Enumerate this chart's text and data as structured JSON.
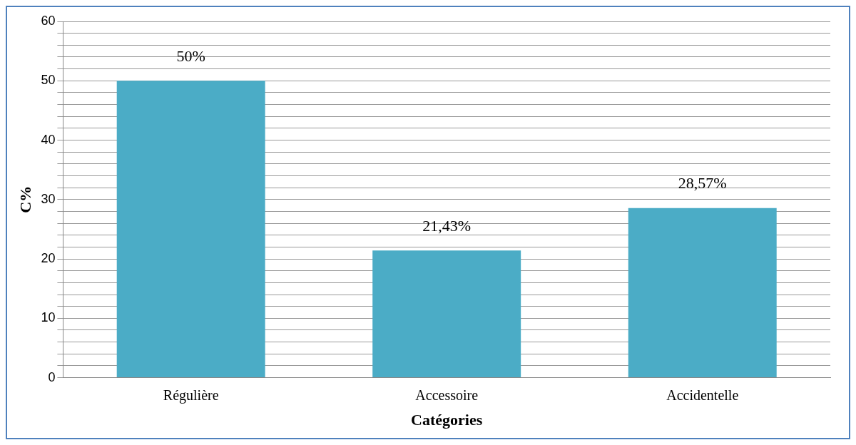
{
  "chart_data": {
    "type": "bar",
    "xlabel": "Catégories",
    "ylabel": "C%",
    "categories": [
      "Régulière",
      "Accessoire",
      "Accidentelle"
    ],
    "values": [
      50,
      21.43,
      28.57
    ],
    "value_labels": [
      "50%",
      "21,43%",
      "28,57%"
    ],
    "color": "#4bacc6",
    "ylim": [
      0,
      60
    ],
    "yticks": [
      0,
      {
        "value": 2,
        "label": null
      },
      {
        "value": 4,
        "label": null
      },
      {
        "value": 6,
        "label": null
      },
      {
        "value": 8,
        "label": null
      },
      10,
      {
        "value": 12,
        "label": null
      },
      {
        "value": 14,
        "label": null
      },
      {
        "value": 16,
        "label": null
      },
      {
        "value": 18,
        "label": null
      },
      20,
      {
        "value": 22,
        "label": null
      },
      {
        "value": 24,
        "label": null
      },
      {
        "value": 26,
        "label": null
      },
      {
        "value": 28,
        "label": null
      },
      30,
      {
        "value": 32,
        "label": null
      },
      {
        "value": 34,
        "label": null
      },
      {
        "value": 36,
        "label": null
      },
      {
        "value": 38,
        "label": null
      },
      40,
      {
        "value": 42,
        "label": null
      },
      {
        "value": 44,
        "label": null
      },
      {
        "value": 46,
        "label": null
      },
      {
        "value": 48,
        "label": null
      },
      50,
      {
        "value": 52,
        "label": null
      },
      {
        "value": 54,
        "label": null
      },
      {
        "value": 56,
        "label": null
      },
      {
        "value": 58,
        "label": null
      },
      60
    ],
    "grid": "y",
    "legend": false
  }
}
